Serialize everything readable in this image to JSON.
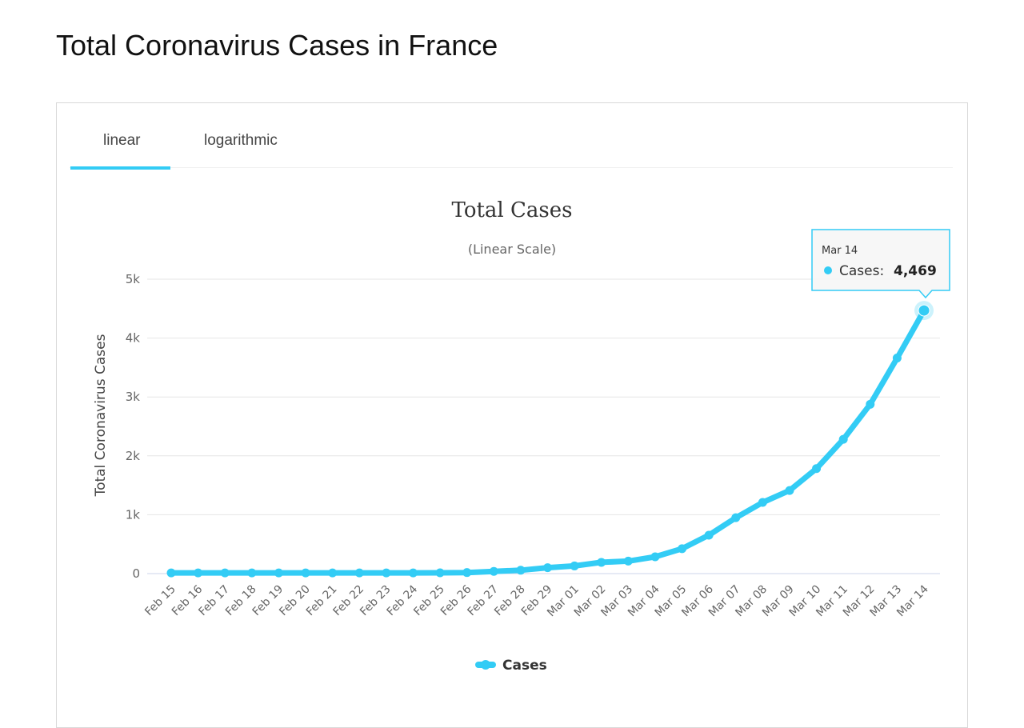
{
  "page": {
    "title": "Total Coronavirus Cases in France"
  },
  "tabs": [
    {
      "label": "linear",
      "active": true
    },
    {
      "label": "logarithmic",
      "active": false
    }
  ],
  "colors": {
    "series": "#33ccf5",
    "grid": "#e6e6e6",
    "axis": "#ccd6eb"
  },
  "tooltip": {
    "date": "Mar 14",
    "label": "Cases:",
    "value": "4,469"
  },
  "chart_data": {
    "type": "line",
    "title": "Total Cases",
    "subtitle": "(Linear Scale)",
    "ylabel": "Total Coronavirus Cases",
    "xlabel": "",
    "ylim": [
      0,
      5000
    ],
    "yticks": [
      0,
      1000,
      2000,
      3000,
      4000,
      5000
    ],
    "ytick_labels": [
      "0",
      "1k",
      "2k",
      "3k",
      "4k",
      "5k"
    ],
    "grid": true,
    "legend": "bottom-center",
    "categories": [
      "Feb 15",
      "Feb 16",
      "Feb 17",
      "Feb 18",
      "Feb 19",
      "Feb 20",
      "Feb 21",
      "Feb 22",
      "Feb 23",
      "Feb 24",
      "Feb 25",
      "Feb 26",
      "Feb 27",
      "Feb 28",
      "Feb 29",
      "Mar 01",
      "Mar 02",
      "Mar 03",
      "Mar 04",
      "Mar 05",
      "Mar 06",
      "Mar 07",
      "Mar 08",
      "Mar 09",
      "Mar 10",
      "Mar 11",
      "Mar 12",
      "Mar 13",
      "Mar 14"
    ],
    "series": [
      {
        "name": "Cases",
        "values": [
          12,
          12,
          12,
          12,
          12,
          12,
          12,
          12,
          12,
          12,
          14,
          18,
          38,
          57,
          100,
          130,
          191,
          212,
          285,
          423,
          653,
          949,
          1209,
          1412,
          1784,
          2281,
          2876,
          3661,
          4469
        ]
      }
    ]
  }
}
